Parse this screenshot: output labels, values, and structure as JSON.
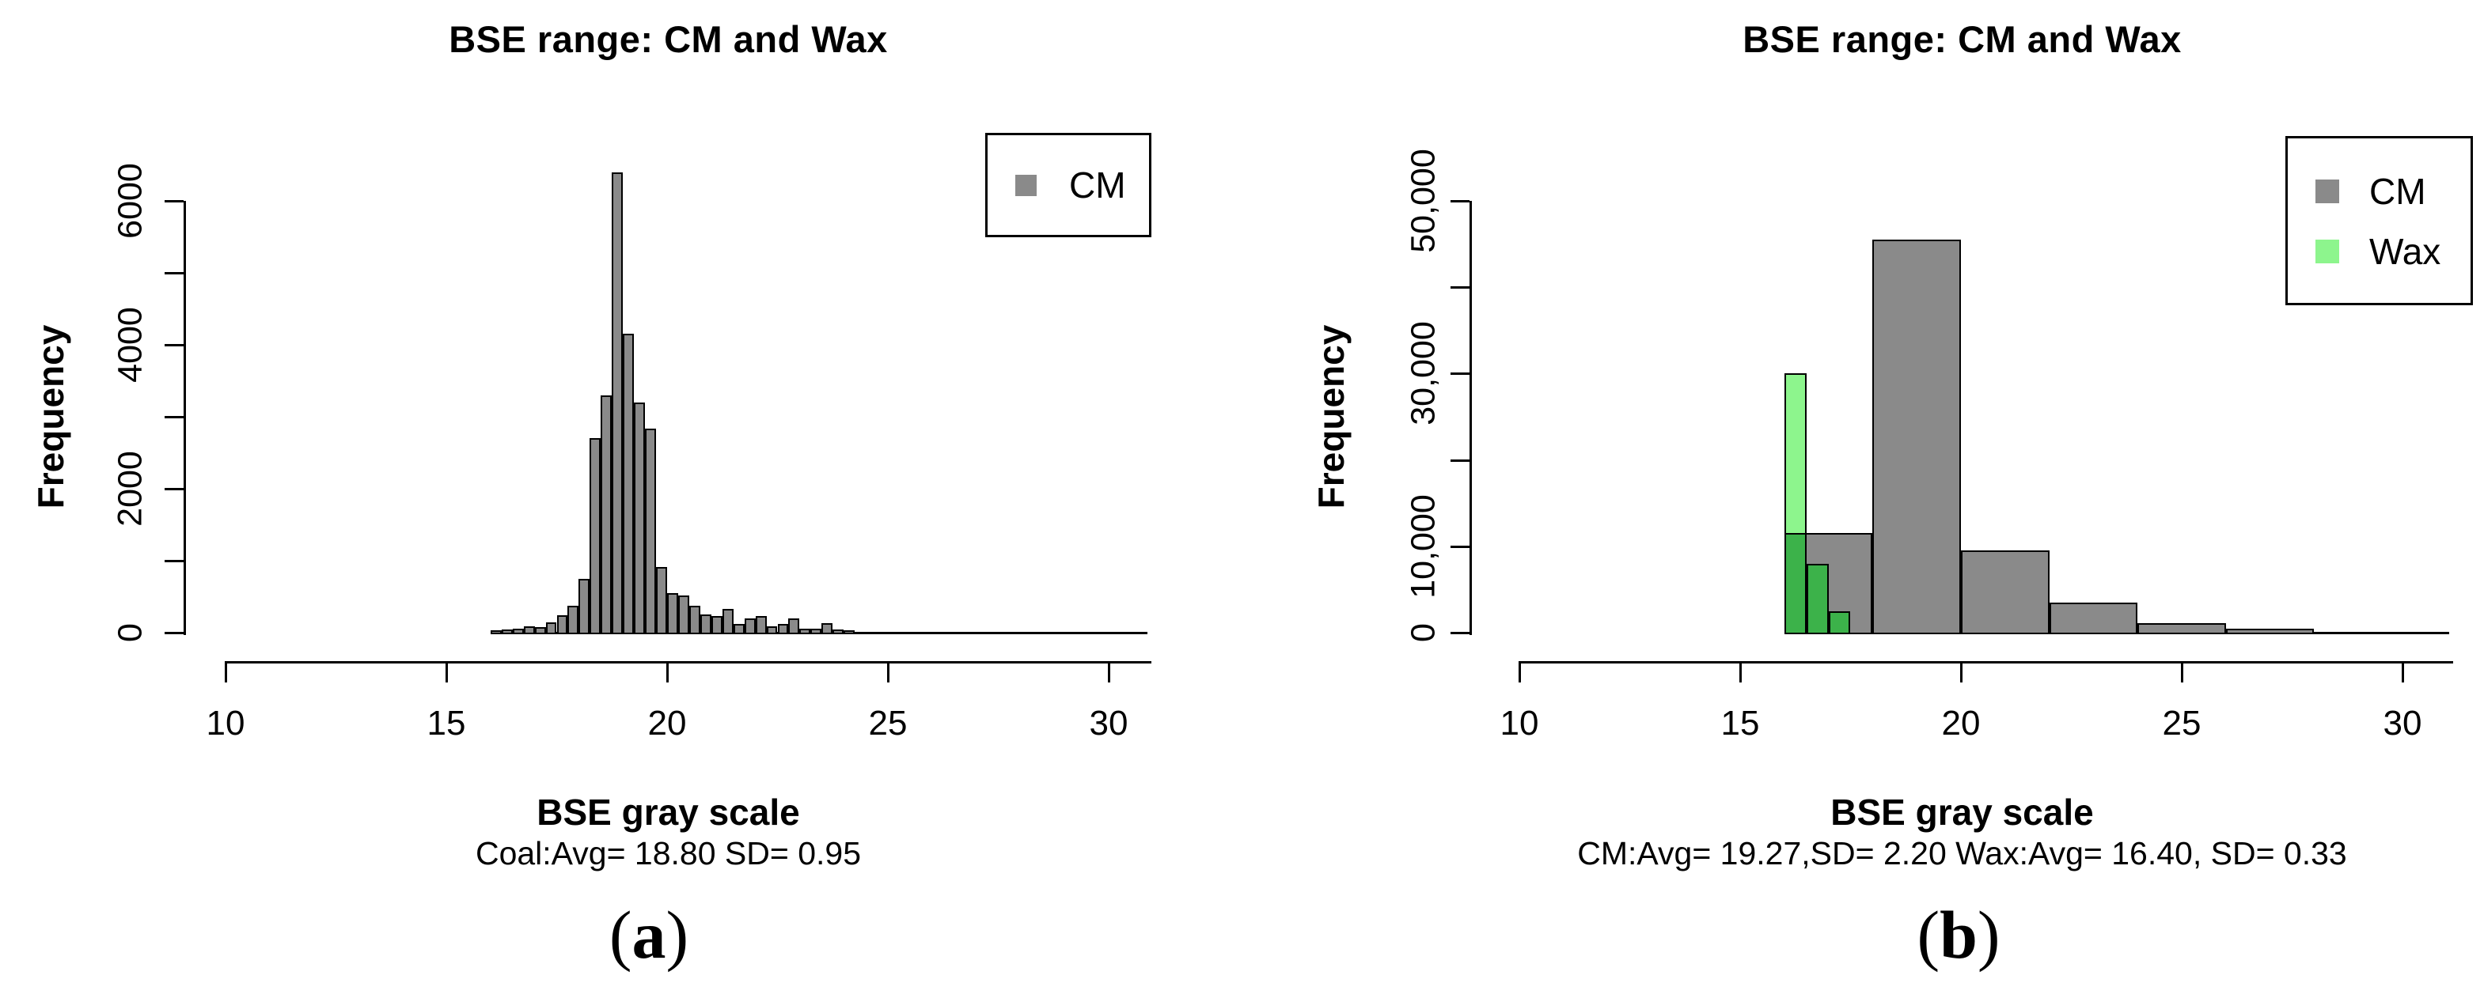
{
  "captions": [
    "(a)",
    "(b)"
  ],
  "chart_data": [
    {
      "type": "bar",
      "title": "BSE range: CM and Wax",
      "xlabel": "BSE gray scale",
      "sublabel": "Coal:Avg= 18.80 SD= 0.95",
      "ylabel": "Frequency",
      "xlim": [
        10,
        30.75
      ],
      "ylim": [
        0,
        6000
      ],
      "x_ticks": [
        10,
        15,
        20,
        25,
        30
      ],
      "y_tick_step": 1000,
      "y_tick_max": 6000,
      "y_tick_labels": {
        "0": "0",
        "2000": "2000",
        "4000": "4000",
        "6000": "6000"
      },
      "grid": false,
      "legend_position": "top-right",
      "legend": [
        {
          "label": "CM",
          "color": "#8a8a8a"
        }
      ],
      "series": [
        {
          "name": "CM",
          "color": "#8a8a8a",
          "bin_start": 16,
          "bin_width": 0.25,
          "values": [
            30,
            45,
            60,
            90,
            80,
            140,
            240,
            375,
            750,
            2700,
            3300,
            6400,
            4150,
            3200,
            2830,
            910,
            550,
            520,
            370,
            250,
            230,
            330,
            120,
            200,
            230,
            90,
            120,
            200,
            60,
            50,
            130,
            40,
            30
          ]
        }
      ]
    },
    {
      "type": "bar",
      "title": "BSE range: CM and Wax",
      "xlabel": "BSE gray scale",
      "sublabel": "CM:Avg= 19.27,SD= 2.20 Wax:Avg= 16.40, SD= 0.33",
      "ylabel": "Frequency",
      "xlim": [
        10,
        30.75
      ],
      "ylim": [
        0,
        50000
      ],
      "x_ticks": [
        10,
        15,
        20,
        25,
        30
      ],
      "y_tick_step": 10000,
      "y_tick_max": 50000,
      "y_tick_labels": {
        "0": "0",
        "10000": "10,000",
        "30000": "30,000",
        "50000": "50,000"
      },
      "grid": false,
      "legend_position": "top-right",
      "legend": [
        {
          "label": "CM",
          "color": "#8a8a8a"
        },
        {
          "label": "Wax",
          "color": "#8df58d"
        }
      ],
      "series": [
        {
          "name": "CM",
          "color": "#8a8a8a",
          "bin_start": 16,
          "bin_width": 2,
          "values": [
            11500,
            45500,
            9500,
            3500,
            1100,
            500
          ]
        },
        {
          "name": "Wax",
          "color": "#8df58d",
          "overlap_color": "#3cb24a",
          "bin_start": 16,
          "bin_width": 0.5,
          "values": [
            30000,
            8000,
            2500
          ]
        }
      ]
    }
  ]
}
